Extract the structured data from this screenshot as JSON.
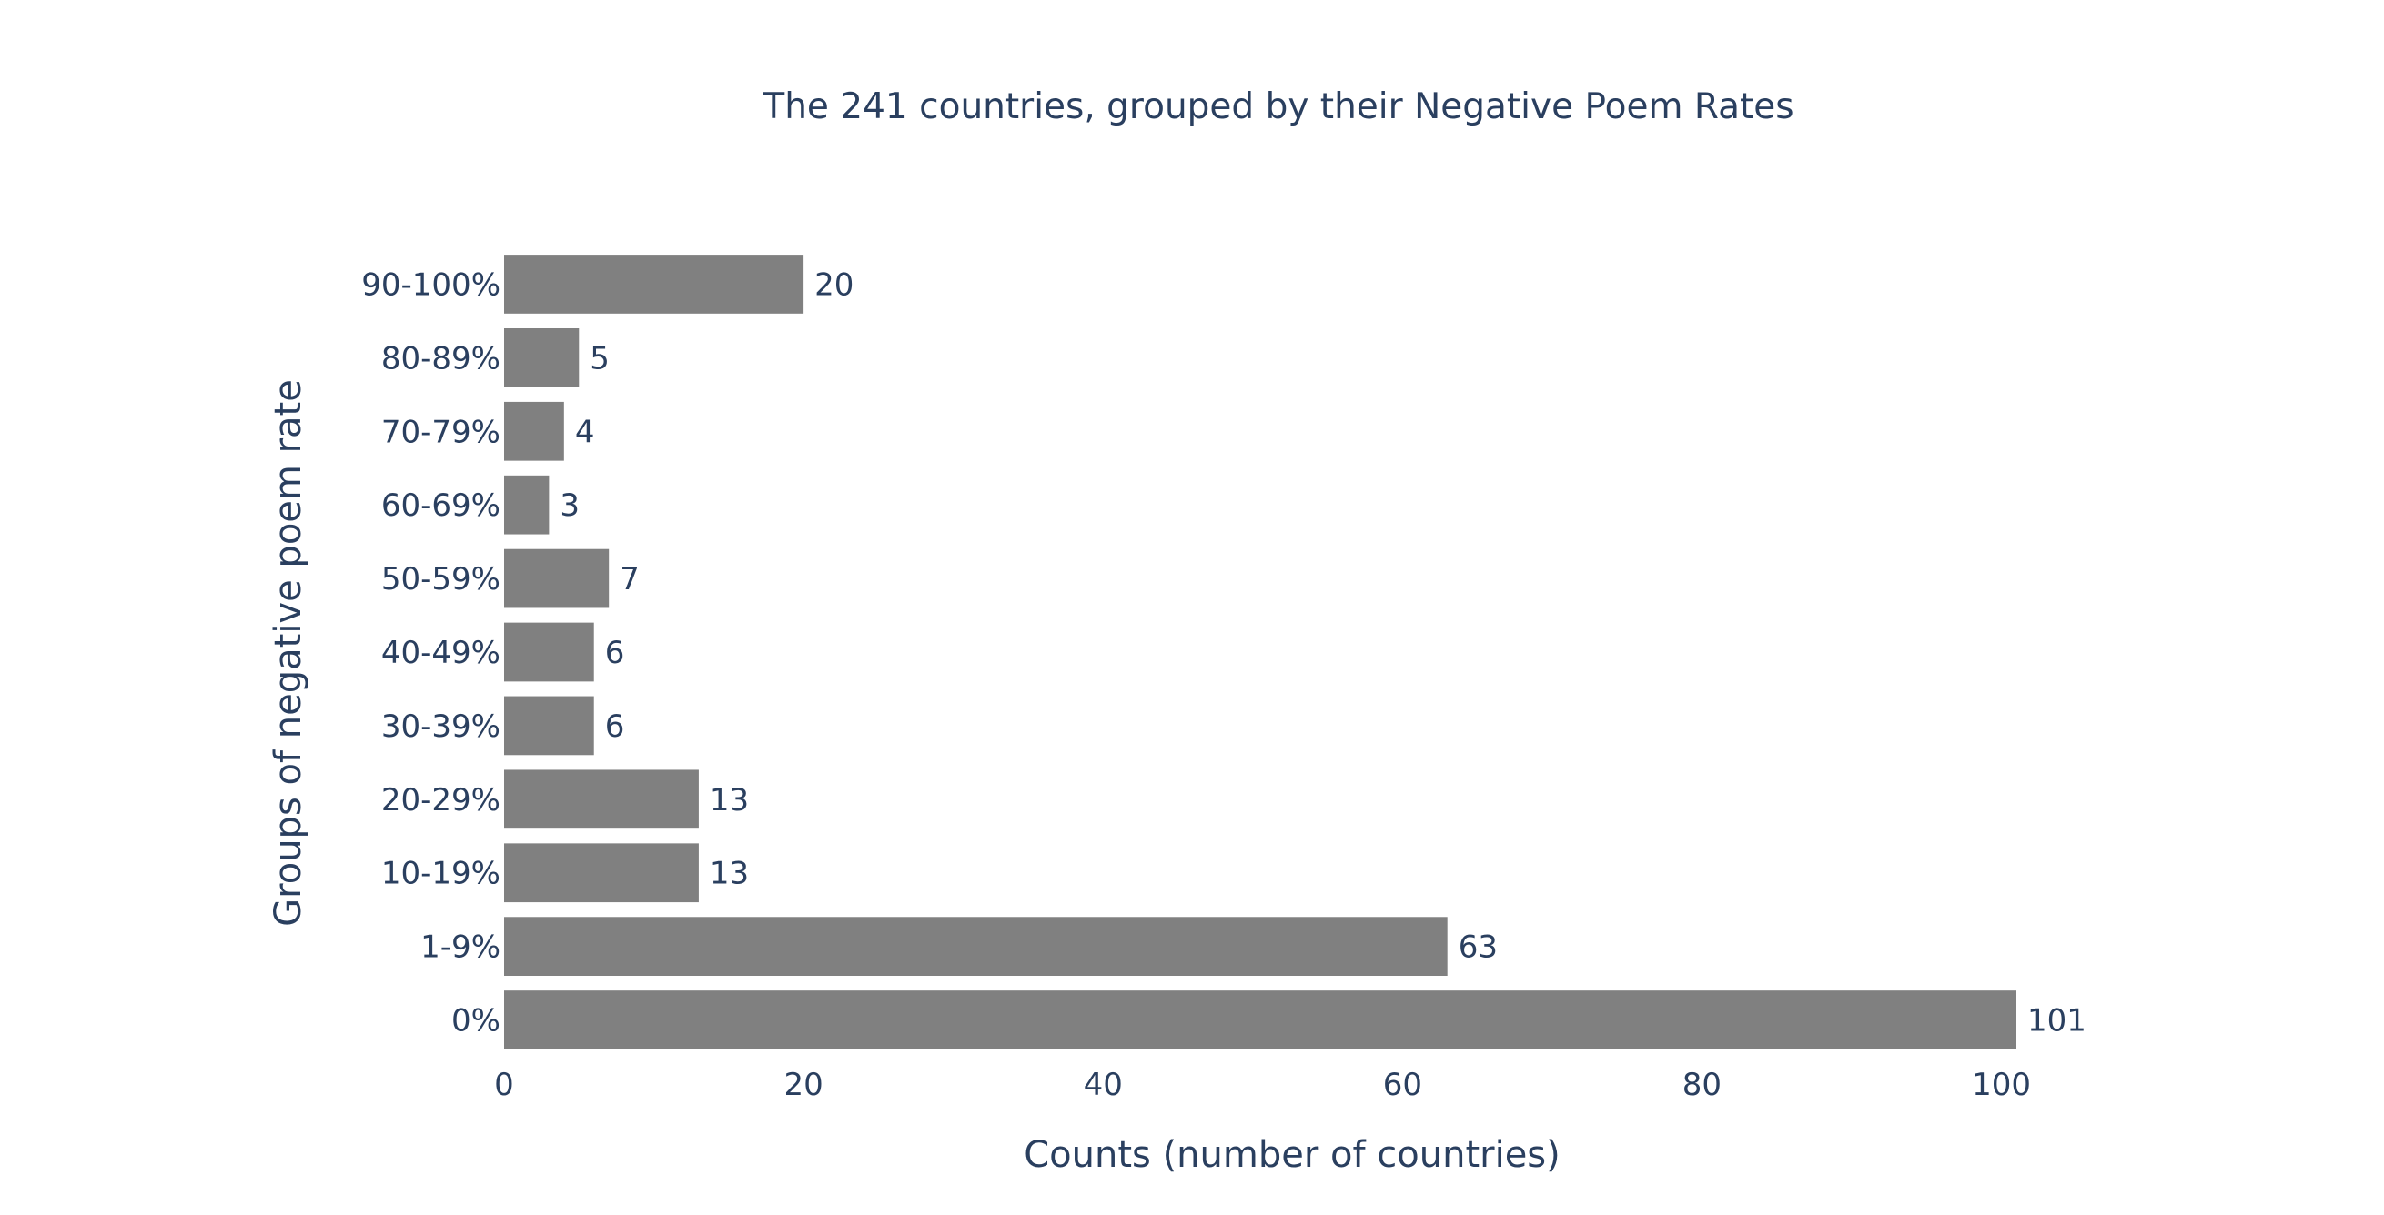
{
  "chart_data": {
    "type": "bar",
    "orientation": "horizontal",
    "title": "The 241 countries, grouped by their Negative Poem Rates",
    "xlabel": "Counts (number of countries)",
    "ylabel": "Groups of negative poem rate",
    "categories": [
      "0%",
      "1-9%",
      "10-19%",
      "20-29%",
      "30-39%",
      "40-49%",
      "50-59%",
      "60-69%",
      "70-79%",
      "80-89%",
      "90-100%"
    ],
    "values": [
      101,
      63,
      13,
      13,
      6,
      6,
      7,
      3,
      4,
      5,
      20
    ],
    "xticks": [
      0,
      20,
      40,
      60,
      80,
      100
    ],
    "xlim": [
      0,
      101
    ],
    "grid": false,
    "legend": "none",
    "data_labels": "outside",
    "colors": {
      "bar": "#808080",
      "text": "#2a3f5f",
      "background": "#ffffff"
    }
  }
}
